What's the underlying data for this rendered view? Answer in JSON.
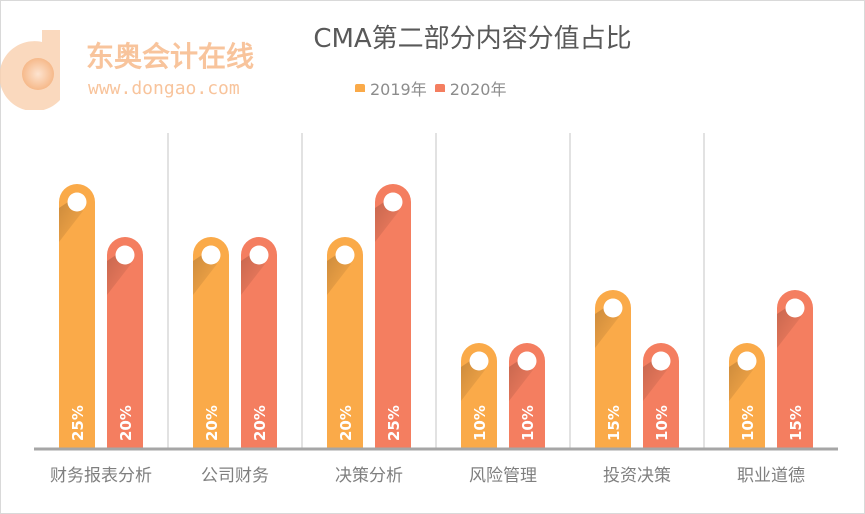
{
  "chart_data": {
    "type": "bar",
    "title": "CMA第二部分内容分值占比",
    "categories": [
      "财务报表分析",
      "公司财务",
      "决策分析",
      "风险管理",
      "投资决策",
      "职业道德"
    ],
    "series": [
      {
        "name": "2019年",
        "values": [
          25,
          20,
          20,
          10,
          15,
          10
        ],
        "color": "#FAAA49"
      },
      {
        "name": "2020年",
        "values": [
          20,
          20,
          25,
          10,
          10,
          15
        ],
        "color": "#F47E60"
      }
    ],
    "value_suffix": "%",
    "ylim": [
      0,
      25
    ],
    "legend_position": "top",
    "grid": "vertical separators between categories",
    "axis_color": "#A6A6A6"
  },
  "watermark": {
    "brand": "东奥会计在线",
    "url": "www.dongao.com",
    "color": "#F8C49C"
  }
}
